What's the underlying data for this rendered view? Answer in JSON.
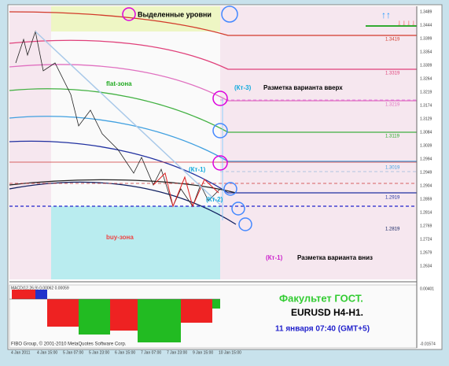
{
  "title": "Выделенные уровни",
  "annotations": {
    "flat_zone": "flat-зона",
    "buy_zone": "buy-зона",
    "kt3": "(Кт-3)",
    "up_variant": "Разметка варианта вверх",
    "kt1_up": "(Кт-1)",
    "kt2": "(Кт-2)",
    "kt1_down": "(Кт-1)",
    "down_variant": "Разметка варианта вниз"
  },
  "footer": {
    "faculty": "Факультет ГОСТ.",
    "symbol": "EURUSD H4-H1.",
    "date": "11 января 07:40 (GMT+5)",
    "copyright": "FIBO Group, © 2001-2010 MetaQuotes Software Corp."
  },
  "levels": [
    "1.3419",
    "1.3319",
    "1.3219",
    "1.3119",
    "1.3019",
    "1.2919",
    "1.2819"
  ],
  "price_axis": [
    "1.3489",
    "1.3444",
    "1.3399",
    "1.3354",
    "1.3309",
    "1.3264",
    "1.3219",
    "1.3174",
    "1.3129",
    "1.3084",
    "1.3039",
    "1.2994",
    "1.2949",
    "1.2904",
    "1.2859",
    "1.2814",
    "1.2769",
    "1.2724",
    "1.2679",
    "1.2634"
  ],
  "indicator": {
    "label": "MACD(12,26,9) 0.00062 0.00059",
    "axis": [
      "0.00401",
      "-0.01574"
    ]
  },
  "time_axis": [
    "4 Jan 2011",
    "4 Jan 15:00",
    "5 Jan 07:00",
    "5 Jan 23:00",
    "6 Jan 15:00",
    "7 Jan 07:00",
    "7 Jan 23:00",
    "9 Jan 15:00",
    "10 Jan 15:00"
  ]
}
